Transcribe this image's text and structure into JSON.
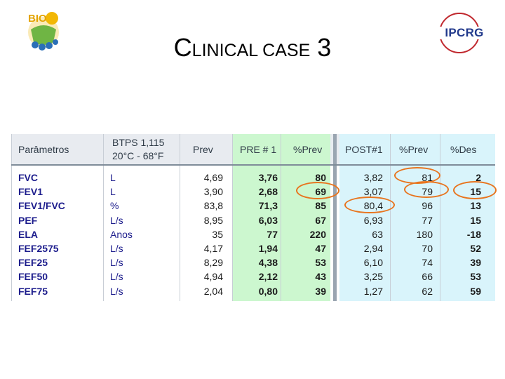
{
  "slide": {
    "title_first": "C",
    "title_caps": "LINICAL CASE",
    "title_number": "3"
  },
  "logos": {
    "left_text": "BIO",
    "right_text": "IPCRG"
  },
  "table": {
    "header": {
      "param": "Parâmetros",
      "btps": "BTPS 1,115",
      "temp": "20°C - 68°F",
      "prev": "Prev",
      "pre": "PRE # 1",
      "pre_pct": "%Prev",
      "post": "POST#1",
      "post_pct": "%Prev",
      "des": "%Des"
    },
    "rows": [
      {
        "param": "FVC",
        "unit": "L",
        "prev": "4,69",
        "pre": "3,76",
        "pre_pct": "80",
        "post": "3,82",
        "post_pct": "81",
        "des": "2"
      },
      {
        "param": "FEV1",
        "unit": "L",
        "prev": "3,90",
        "pre": "2,68",
        "pre_pct": "69",
        "post": "3,07",
        "post_pct": "79",
        "des": "15"
      },
      {
        "param": "FEV1/FVC",
        "unit": "%",
        "prev": "83,8",
        "pre": "71,3",
        "pre_pct": "85",
        "post": "80,4",
        "post_pct": "96",
        "des": "13"
      },
      {
        "param": "PEF",
        "unit": "L/s",
        "prev": "8,95",
        "pre": "6,03",
        "pre_pct": "67",
        "post": "6,93",
        "post_pct": "77",
        "des": "15"
      },
      {
        "param": "ELA",
        "unit": "Anos",
        "prev": "35",
        "pre": "77",
        "pre_pct": "220",
        "post": "63",
        "post_pct": "180",
        "des": "-18"
      },
      {
        "param": "FEF2575",
        "unit": "L/s",
        "prev": "4,17",
        "pre": "1,94",
        "pre_pct": "47",
        "post": "2,94",
        "post_pct": "70",
        "des": "52"
      },
      {
        "param": "FEF25",
        "unit": "L/s",
        "prev": "8,29",
        "pre": "4,38",
        "pre_pct": "53",
        "post": "6,10",
        "post_pct": "74",
        "des": "39"
      },
      {
        "param": "FEF50",
        "unit": "L/s",
        "prev": "4,94",
        "pre": "2,12",
        "pre_pct": "43",
        "post": "3,25",
        "post_pct": "66",
        "des": "53"
      },
      {
        "param": "FEF75",
        "unit": "L/s",
        "prev": "2,04",
        "pre": "0,80",
        "pre_pct": "39",
        "post": "1,27",
        "post_pct": "62",
        "des": "59"
      }
    ]
  },
  "colors": {
    "pre_column_bg": "#ccf7cf",
    "post_column_bg": "#d9f4fb",
    "header_bg": "#e8ebf0",
    "highlight_ring": "#e8741e"
  }
}
